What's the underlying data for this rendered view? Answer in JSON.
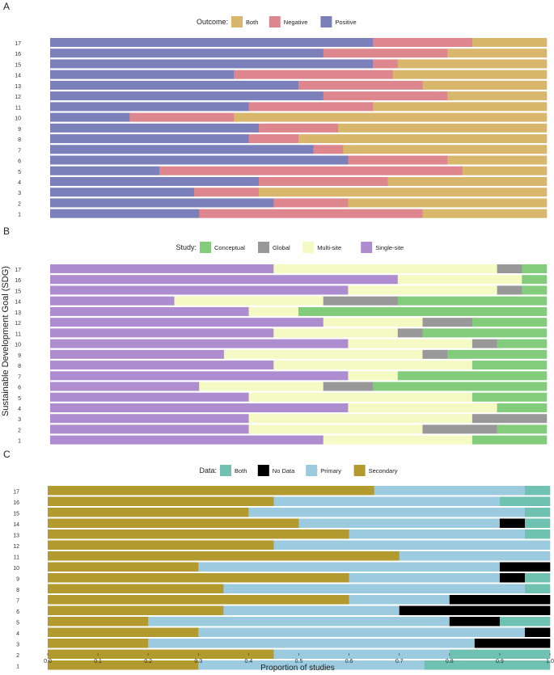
{
  "figure": {
    "shared_ylabel": "Sustainable Development Goal (SDG)",
    "shared_xlabel": "Proportion of studies",
    "x_ticks": [
      "0.0",
      "0.1",
      "0.2",
      "0.3",
      "0.4",
      "0.5",
      "0.6",
      "0.7",
      "0.8",
      "0.9",
      "1.0"
    ]
  },
  "chart_data": [
    {
      "panel": "A",
      "type": "bar",
      "orientation": "horizontal-stacked",
      "legend_title": "Outcome:",
      "legend_position": "top",
      "categories": [
        "1",
        "2",
        "3",
        "4",
        "5",
        "6",
        "7",
        "8",
        "9",
        "10",
        "11",
        "12",
        "13",
        "14",
        "15",
        "16",
        "17"
      ],
      "series": [
        {
          "name": "Positive",
          "color": "#7b7fba",
          "values": [
            0.3,
            0.45,
            0.29,
            0.42,
            0.22,
            0.6,
            0.53,
            0.4,
            0.42,
            0.16,
            0.4,
            0.55,
            0.5,
            0.37,
            0.65,
            0.55,
            0.65
          ]
        },
        {
          "name": "Negative",
          "color": "#de868d",
          "values": [
            0.45,
            0.15,
            0.13,
            0.26,
            0.61,
            0.2,
            0.06,
            0.1,
            0.16,
            0.21,
            0.25,
            0.25,
            0.25,
            0.32,
            0.05,
            0.25,
            0.2
          ]
        },
        {
          "name": "Both",
          "color": "#d8b66b",
          "values": [
            0.25,
            0.4,
            0.58,
            0.32,
            0.17,
            0.2,
            0.41,
            0.5,
            0.42,
            0.63,
            0.35,
            0.2,
            0.25,
            0.31,
            0.3,
            0.2,
            0.15
          ]
        }
      ],
      "legend_order": [
        "Both",
        "Negative",
        "Positive"
      ],
      "xlim": [
        0,
        1
      ]
    },
    {
      "panel": "B",
      "type": "bar",
      "orientation": "horizontal-stacked",
      "legend_title": "Study:",
      "legend_position": "top",
      "categories": [
        "1",
        "2",
        "3",
        "4",
        "5",
        "6",
        "7",
        "8",
        "9",
        "10",
        "11",
        "12",
        "13",
        "14",
        "15",
        "16",
        "17"
      ],
      "series": [
        {
          "name": "Single-site",
          "color": "#ad8cd0",
          "values": [
            0.55,
            0.4,
            0.4,
            0.6,
            0.4,
            0.3,
            0.6,
            0.45,
            0.35,
            0.6,
            0.45,
            0.55,
            0.4,
            0.25,
            0.6,
            0.7,
            0.45
          ]
        },
        {
          "name": "Multi-site",
          "color": "#f5f9c4",
          "values": [
            0.3,
            0.35,
            0.45,
            0.3,
            0.45,
            0.25,
            0.1,
            0.4,
            0.4,
            0.25,
            0.25,
            0.2,
            0.1,
            0.3,
            0.3,
            0.25,
            0.45
          ]
        },
        {
          "name": "Global",
          "color": "#989898",
          "values": [
            0.0,
            0.15,
            0.15,
            0.0,
            0.0,
            0.1,
            0.0,
            0.0,
            0.05,
            0.05,
            0.05,
            0.1,
            0.0,
            0.15,
            0.05,
            0.0,
            0.05
          ]
        },
        {
          "name": "Conceptual",
          "color": "#83cc7b",
          "values": [
            0.15,
            0.1,
            0.0,
            0.1,
            0.15,
            0.35,
            0.3,
            0.15,
            0.2,
            0.1,
            0.25,
            0.15,
            0.5,
            0.3,
            0.05,
            0.05,
            0.05
          ]
        }
      ],
      "legend_order": [
        "Conceptual",
        "Global",
        "Multi-site",
        "Single-site"
      ],
      "xlim": [
        0,
        1
      ]
    },
    {
      "panel": "C",
      "type": "bar",
      "orientation": "horizontal-stacked",
      "legend_title": "Data:",
      "legend_position": "top",
      "categories": [
        "1",
        "2",
        "3",
        "4",
        "5",
        "6",
        "7",
        "8",
        "9",
        "10",
        "11",
        "12",
        "13",
        "14",
        "15",
        "16",
        "17"
      ],
      "series": [
        {
          "name": "Secondary",
          "color": "#b39a2f",
          "values": [
            0.3,
            0.45,
            0.2,
            0.3,
            0.2,
            0.35,
            0.6,
            0.35,
            0.6,
            0.3,
            0.7,
            0.45,
            0.6,
            0.5,
            0.4,
            0.45,
            0.65
          ]
        },
        {
          "name": "Primary",
          "color": "#9ccbe0",
          "values": [
            0.45,
            0.35,
            0.65,
            0.65,
            0.6,
            0.35,
            0.2,
            0.6,
            0.3,
            0.6,
            0.3,
            0.55,
            0.35,
            0.4,
            0.55,
            0.45,
            0.3
          ]
        },
        {
          "name": "No Data",
          "color": "#000000",
          "values": [
            0.0,
            0.0,
            0.15,
            0.05,
            0.1,
            0.3,
            0.2,
            0.0,
            0.05,
            0.1,
            0.0,
            0.0,
            0.0,
            0.05,
            0.0,
            0.0,
            0.0
          ]
        },
        {
          "name": "Both",
          "color": "#6fc1b1",
          "values": [
            0.25,
            0.2,
            0.0,
            0.0,
            0.1,
            0.0,
            0.0,
            0.05,
            0.05,
            0.0,
            0.0,
            0.0,
            0.05,
            0.05,
            0.05,
            0.1,
            0.05
          ]
        }
      ],
      "legend_order": [
        "Both",
        "No Data",
        "Primary",
        "Secondary"
      ],
      "xlim": [
        0,
        1
      ],
      "xlabel": "Proportion of studies"
    }
  ]
}
